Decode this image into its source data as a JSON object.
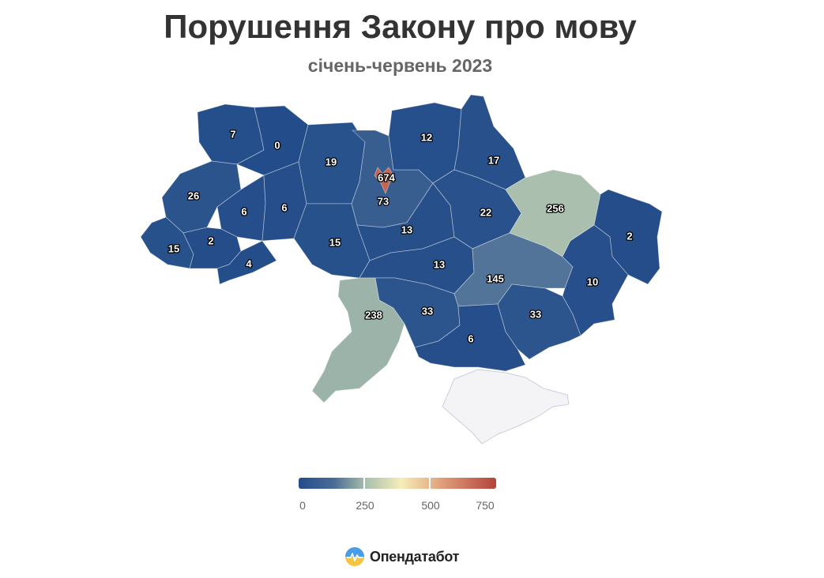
{
  "header": {
    "title": "Порушення Закону про мову",
    "subtitle": "січень-червень 2023"
  },
  "map": {
    "color_scale": {
      "min": 0,
      "max": 750,
      "ticks": [
        "0",
        "250",
        "500",
        "750"
      ],
      "stops": [
        "#234d8a",
        "#4a6d96",
        "#a9bfad",
        "#f6eeb8",
        "#e0a17c",
        "#b3443b"
      ]
    },
    "no_data_color": "#f4f4f6",
    "regions": [
      {
        "id": "volyn",
        "value": 7
      },
      {
        "id": "rivne",
        "value": 0
      },
      {
        "id": "zhytomyr",
        "value": 19
      },
      {
        "id": "kyiv-oblast",
        "value": 73
      },
      {
        "id": "kyiv-city",
        "value": 674
      },
      {
        "id": "chernihiv",
        "value": 12
      },
      {
        "id": "sumy",
        "value": 17
      },
      {
        "id": "lviv",
        "value": 26
      },
      {
        "id": "ternopil",
        "value": 6
      },
      {
        "id": "khmelnytskyi",
        "value": 6
      },
      {
        "id": "vinnytsia",
        "value": 15
      },
      {
        "id": "cherkasy",
        "value": 13
      },
      {
        "id": "poltava",
        "value": 22
      },
      {
        "id": "kharkiv",
        "value": 256
      },
      {
        "id": "luhansk",
        "value": 2
      },
      {
        "id": "zakarpattia",
        "value": 15
      },
      {
        "id": "ivano-frankivsk",
        "value": 2
      },
      {
        "id": "chernivtsi",
        "value": 4
      },
      {
        "id": "kirovohrad",
        "value": 13
      },
      {
        "id": "dnipropetrovsk",
        "value": 145
      },
      {
        "id": "donetsk",
        "value": 10
      },
      {
        "id": "odesa",
        "value": 238
      },
      {
        "id": "mykolaiv",
        "value": 33
      },
      {
        "id": "kherson",
        "value": 6
      },
      {
        "id": "zaporizhzhia",
        "value": 33
      },
      {
        "id": "crimea",
        "value": null
      }
    ]
  },
  "brand": {
    "name": "Опендатабот",
    "logo_icon": "opendatabot-logo-icon"
  }
}
